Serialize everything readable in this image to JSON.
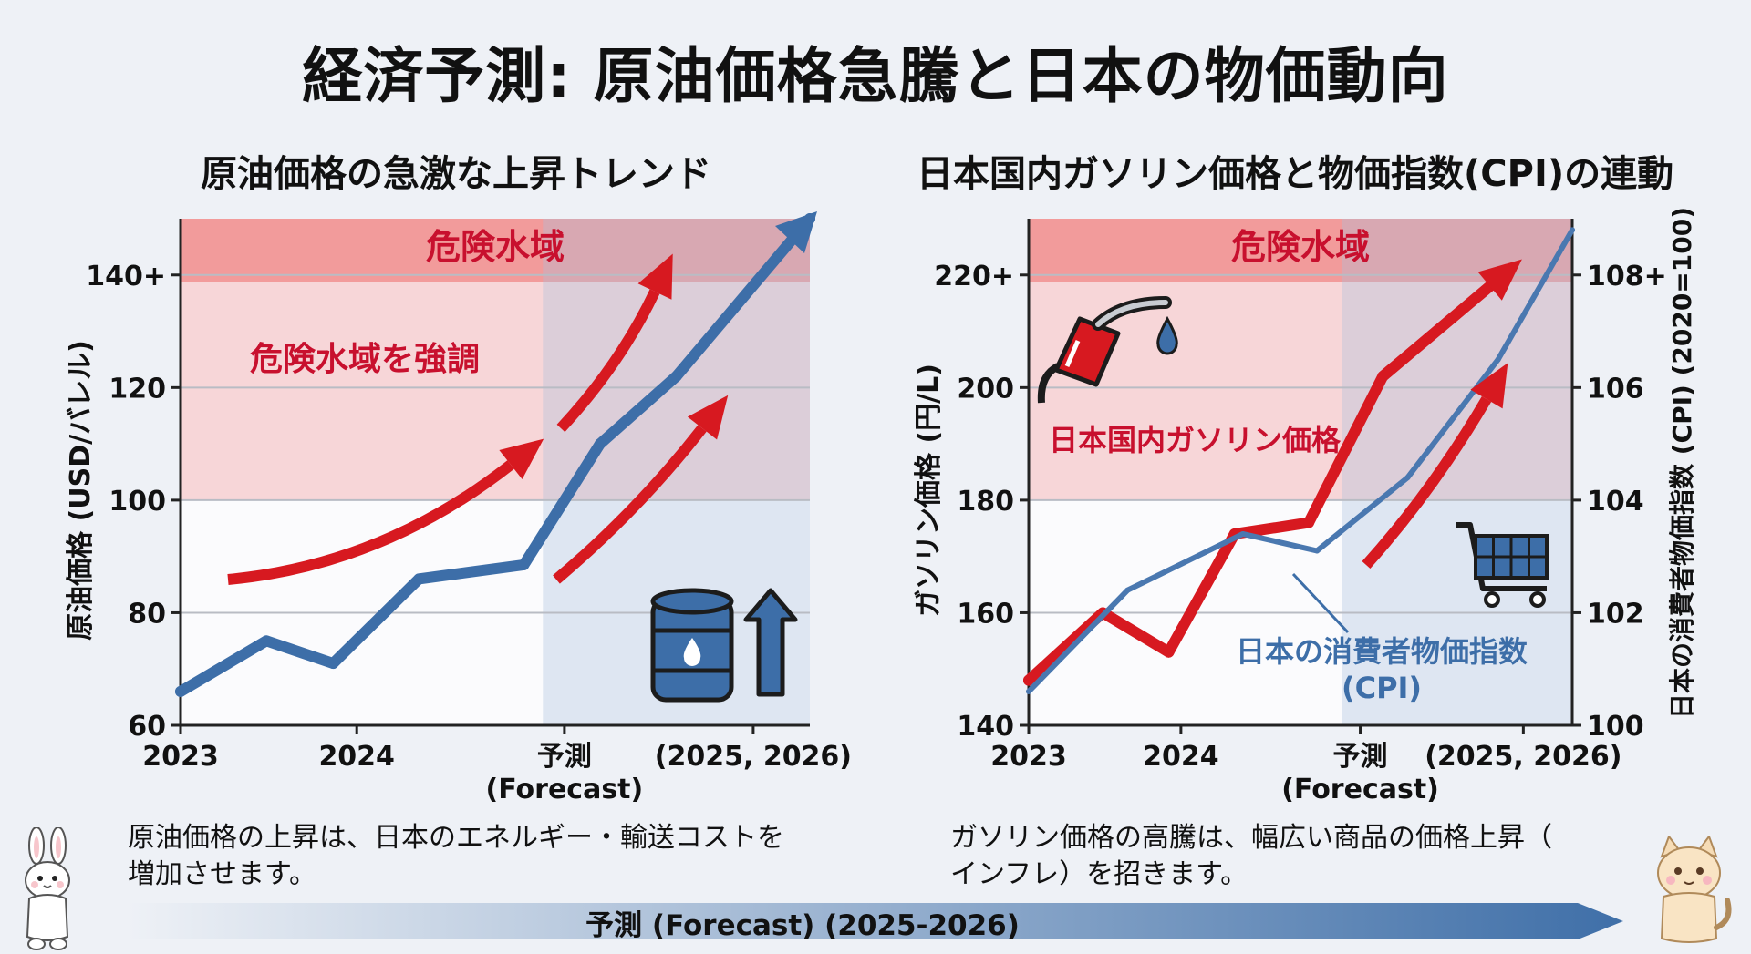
{
  "page": {
    "title": "経済予測: 原油価格急騰と日本の物価動向"
  },
  "chart_data": [
    {
      "type": "line",
      "title": "原油価格の急激な上昇トレンド",
      "ylabel": "原油価格 (USD/バレル)",
      "xlabel": "",
      "x_ticks": [
        "2023",
        "2024",
        "予測\n(Forecast)",
        "(2025, 2026)"
      ],
      "y_ticks": [
        "60",
        "80",
        "100",
        "120",
        "140+"
      ],
      "ylim": [
        60,
        150
      ],
      "danger_zone_label": "危険水域",
      "annotation": "危険水域を強調",
      "forecast_region_start": 2024.9,
      "series": [
        {
          "color": "#3d6ea8",
          "points": [
            [
              2023.0,
              66
            ],
            [
              2023.45,
              75
            ],
            [
              2023.8,
              71
            ],
            [
              2024.25,
              86
            ],
            [
              2024.8,
              88.5
            ],
            [
              2025.2,
              110
            ],
            [
              2025.6,
              122
            ],
            [
              2026.3,
              150
            ]
          ]
        }
      ],
      "x_range": [
        2023.0,
        2026.3
      ],
      "colors": {
        "danger": "#f6b3b3",
        "danger_band": "#f08a8a",
        "forecast": "#dce6f1",
        "arrow": "#d71920"
      }
    },
    {
      "type": "line",
      "title": "日本国内ガソリン価格と物価指数(CPI)の連動",
      "ylabel": "ガソリン価格 (円/L)",
      "y2label": "日本の消費者物価指数 (CPI) (2020=100)",
      "x_ticks": [
        "2023",
        "2024",
        "予測\n(Forecast)",
        "(2025, 2026)"
      ],
      "y_ticks": [
        "140",
        "160",
        "180",
        "200",
        "220+"
      ],
      "y2_ticks": [
        "100",
        "102",
        "104",
        "106",
        "108+"
      ],
      "ylim": [
        140,
        230
      ],
      "y2lim": [
        100,
        109
      ],
      "danger_zone_label": "危険水域",
      "forecast_region_start": 2024.9,
      "x_range": [
        2023.0,
        2026.3
      ],
      "series": [
        {
          "name": "日本国内ガソリン価格",
          "color": "#d71920",
          "points": [
            [
              2023.0,
              148
            ],
            [
              2023.45,
              160
            ],
            [
              2023.85,
              153
            ],
            [
              2024.25,
              174
            ],
            [
              2024.7,
              176
            ],
            [
              2025.15,
              202
            ],
            [
              2025.8,
              218
            ]
          ]
        },
        {
          "name": "日本の消費者物価指数\n(CPI)",
          "color": "#4a78b0",
          "axis": "right",
          "points": [
            [
              2023.0,
              100.6
            ],
            [
              2023.6,
              102.4
            ],
            [
              2024.3,
              103.4
            ],
            [
              2024.75,
              103.1
            ],
            [
              2025.3,
              104.4
            ],
            [
              2025.85,
              106.5
            ],
            [
              2026.3,
              108.8
            ]
          ]
        }
      ]
    }
  ],
  "captions": {
    "left": "原油価格の上昇は、日本のエネルギー・輸送コストを\n増加させます。",
    "right": "ガソリン価格の高騰は、幅広い商品の価格上昇（\nインフレ）を招きます。"
  },
  "footer": {
    "forecast_label": "予測 (Forecast) (2025-2026)"
  },
  "icons": [
    "oil-barrel-icon",
    "up-arrow-icon",
    "fuel-nozzle-icon",
    "fuel-drop-icon",
    "shopping-cart-icon",
    "rabbit-mascot-icon",
    "cat-mascot-icon"
  ]
}
